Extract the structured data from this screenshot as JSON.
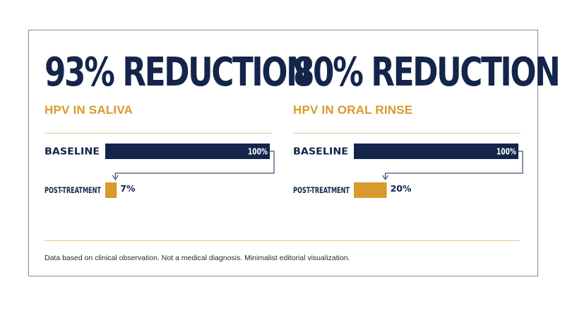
{
  "colors": {
    "navy": "#13254b",
    "gold": "#d99a2b",
    "rule": "#e7c98e",
    "white": "#ffffff"
  },
  "footnote": "Data based on clinical observation. Not a medical diagnosis. Minimalist editorial visualization.",
  "chart_data": [
    {
      "type": "bar",
      "title": "93% REDUCTION",
      "subtitle": "HPV IN SALIVA",
      "categories": [
        "BASELINE",
        "POST-TREATMENT"
      ],
      "values": [
        100,
        7
      ],
      "value_labels": [
        "100%",
        "7%"
      ],
      "xlim": [
        0,
        100
      ],
      "orientation": "horizontal",
      "grid": false
    },
    {
      "type": "bar",
      "title": "80% REDUCTION",
      "subtitle": "HPV IN ORAL RINSE",
      "categories": [
        "BASELINE",
        "POST-TREATMENT"
      ],
      "values": [
        100,
        20
      ],
      "value_labels": [
        "100%",
        "20%"
      ],
      "xlim": [
        0,
        100
      ],
      "orientation": "horizontal",
      "grid": false
    }
  ]
}
